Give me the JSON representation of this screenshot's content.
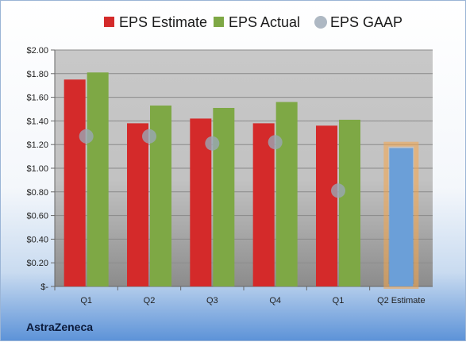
{
  "company_label": "AstraZeneca",
  "chart_data": {
    "type": "bar",
    "categories": [
      "Q1",
      "Q2",
      "Q3",
      "Q4",
      "Q1",
      "Q2 Estimate"
    ],
    "series": [
      {
        "name": "EPS Estimate",
        "type": "bar",
        "color": "#d42a2a",
        "values": [
          1.75,
          1.38,
          1.42,
          1.38,
          1.36,
          null
        ]
      },
      {
        "name": "EPS Actual",
        "type": "bar",
        "color": "#7ea845",
        "values": [
          1.81,
          1.53,
          1.51,
          1.56,
          1.41,
          null
        ]
      },
      {
        "name": "EPS GAAP",
        "type": "scatter",
        "color": "#9aa6b4",
        "values": [
          1.27,
          1.27,
          1.21,
          1.22,
          0.81,
          null
        ]
      },
      {
        "name": "Q2 Estimate",
        "type": "bar",
        "color": "#6b9fd8",
        "highlight": "#f6a54a",
        "values": [
          null,
          null,
          null,
          null,
          null,
          1.17
        ]
      }
    ],
    "ylim": [
      0,
      2.0
    ],
    "y_ticks": [
      "$2.00",
      "$1.80",
      "$1.60",
      "$1.40",
      "$1.20",
      "$1.00",
      "$0.80",
      "$0.60",
      "$0.40",
      "$0.20",
      "$-"
    ],
    "grid": true,
    "legend": "top"
  }
}
